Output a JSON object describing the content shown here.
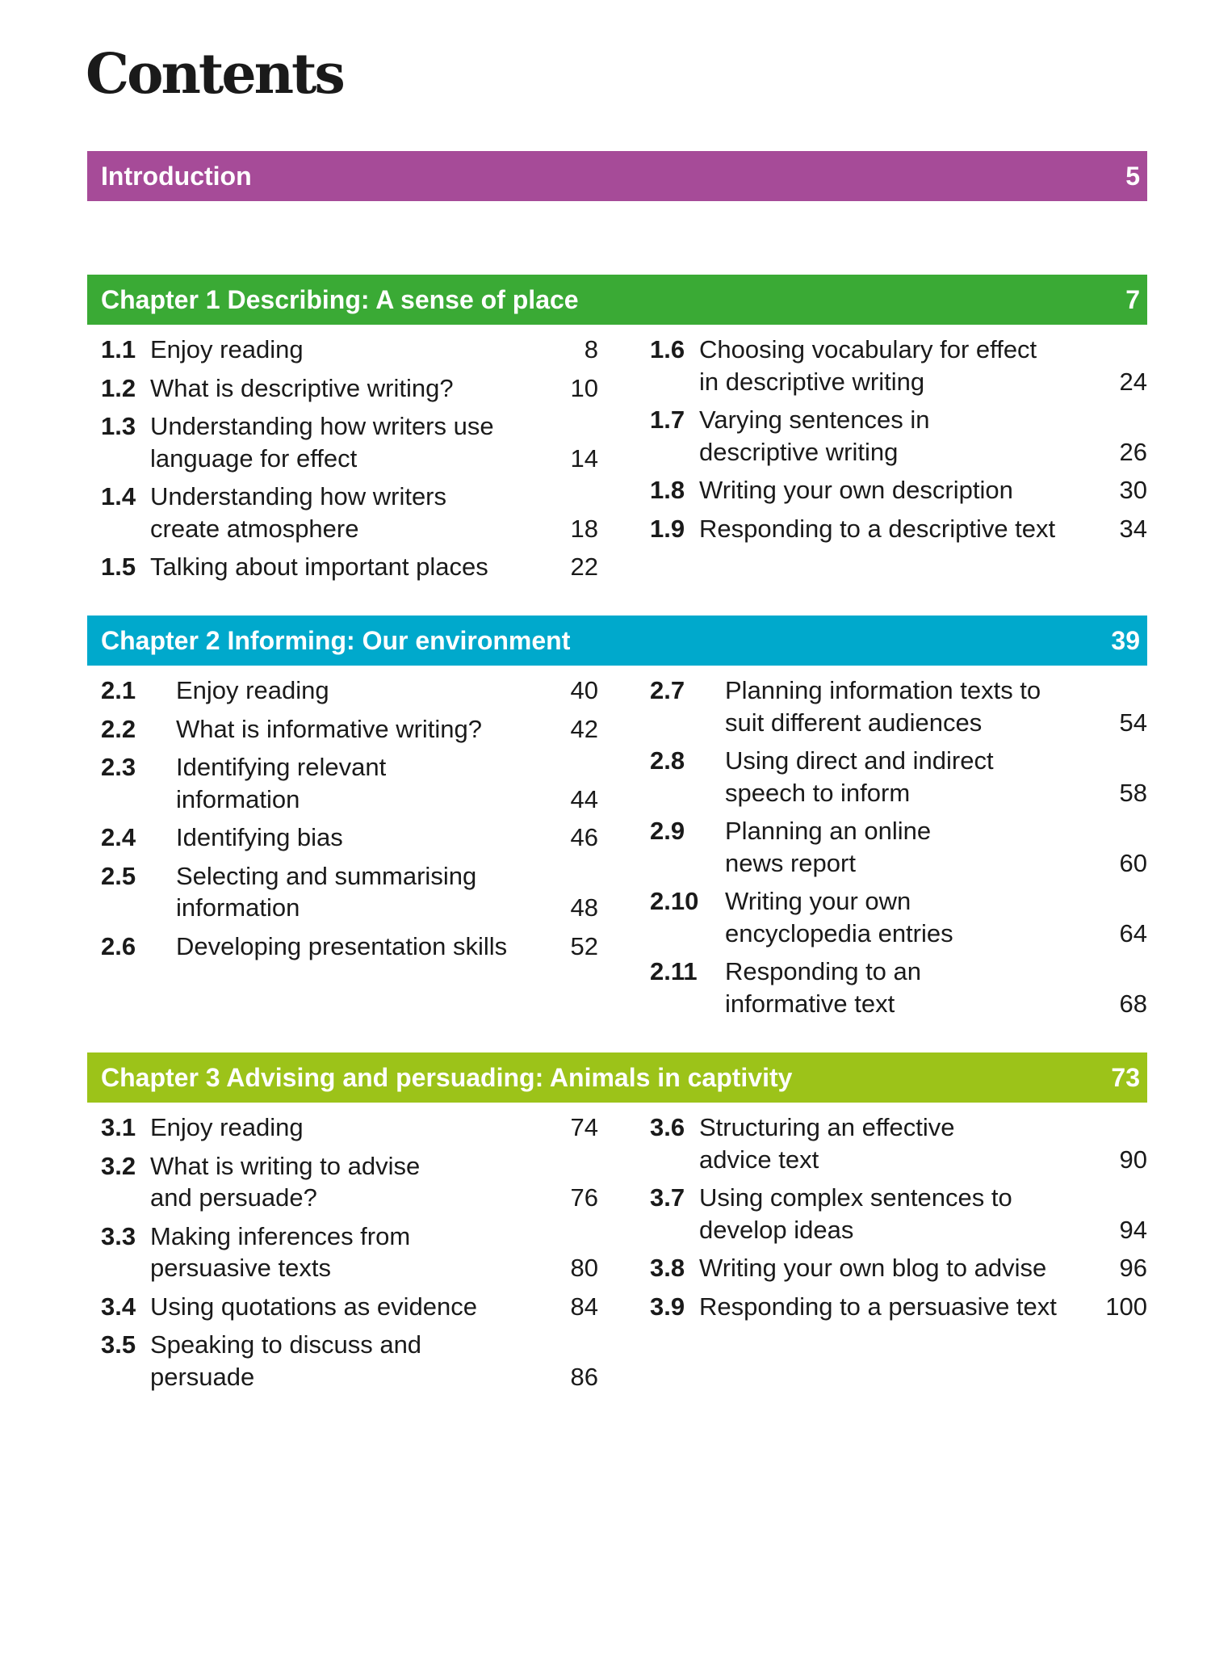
{
  "title": "Contents",
  "introduction": {
    "title": "Introduction",
    "page": 5
  },
  "chapters": [
    {
      "title": "Chapter 1 Describing: A sense of place",
      "page": 7,
      "columns": [
        [
          {
            "number": "1.1",
            "lines": [
              "Enjoy reading"
            ],
            "page": 8
          },
          {
            "number": "1.2",
            "lines": [
              "What is descriptive writing?"
            ],
            "page": 10
          },
          {
            "number": "1.3",
            "lines": [
              "Understanding how writers use",
              "language for effect"
            ],
            "page": 14
          },
          {
            "number": "1.4",
            "lines": [
              "Understanding how writers",
              "create atmosphere"
            ],
            "page": 18
          },
          {
            "number": "1.5",
            "lines": [
              "Talking about important places"
            ],
            "page": 22
          }
        ],
        [
          {
            "number": "1.6",
            "lines": [
              "Choosing vocabulary for effect",
              "in descriptive writing"
            ],
            "page": 24
          },
          {
            "number": "1.7",
            "lines": [
              "Varying sentences in",
              "descriptive writing"
            ],
            "page": 26
          },
          {
            "number": "1.8",
            "lines": [
              "Writing your own description"
            ],
            "page": 30
          },
          {
            "number": "1.9",
            "lines": [
              "Responding to a descriptive text"
            ],
            "page": 34
          }
        ]
      ]
    },
    {
      "title": "Chapter 2 Informing: Our environment",
      "page": 39,
      "columns": [
        [
          {
            "number": "2.1",
            "lines": [
              "Enjoy reading"
            ],
            "page": 40
          },
          {
            "number": "2.2",
            "lines": [
              "What is informative writing?"
            ],
            "page": 42
          },
          {
            "number": "2.3",
            "lines": [
              "Identifying relevant",
              "information"
            ],
            "page": 44
          },
          {
            "number": "2.4",
            "lines": [
              "Identifying bias"
            ],
            "page": 46
          },
          {
            "number": "2.5",
            "lines": [
              "Selecting and summarising",
              "information"
            ],
            "page": 48
          },
          {
            "number": "2.6",
            "lines": [
              "Developing presentation skills"
            ],
            "page": 52
          }
        ],
        [
          {
            "number": "2.7",
            "lines": [
              "Planning information texts to",
              "suit different audiences"
            ],
            "page": 54
          },
          {
            "number": "2.8",
            "lines": [
              "Using direct and indirect",
              "speech to inform"
            ],
            "page": 58
          },
          {
            "number": "2.9",
            "lines": [
              "Planning an online",
              "news report"
            ],
            "page": 60
          },
          {
            "number": "2.10",
            "lines": [
              "Writing your own",
              "encyclopedia entries"
            ],
            "page": 64
          },
          {
            "number": "2.11",
            "lines": [
              "Responding to an",
              "informative text"
            ],
            "page": 68
          }
        ]
      ]
    },
    {
      "title": "Chapter 3 Advising and persuading: Animals in captivity",
      "page": 73,
      "columns": [
        [
          {
            "number": "3.1",
            "lines": [
              "Enjoy reading"
            ],
            "page": 74
          },
          {
            "number": "3.2",
            "lines": [
              "What is writing to advise",
              "and persuade?"
            ],
            "page": 76
          },
          {
            "number": "3.3",
            "lines": [
              "Making inferences from",
              "persuasive texts"
            ],
            "page": 80
          },
          {
            "number": "3.4",
            "lines": [
              "Using quotations as evidence"
            ],
            "page": 84
          },
          {
            "number": "3.5",
            "lines": [
              "Speaking to discuss and",
              "persuade"
            ],
            "page": 86
          }
        ],
        [
          {
            "number": "3.6",
            "lines": [
              "Structuring an effective",
              "advice text"
            ],
            "page": 90
          },
          {
            "number": "3.7",
            "lines": [
              "Using complex sentences to",
              "develop ideas"
            ],
            "page": 94
          },
          {
            "number": "3.8",
            "lines": [
              "Writing your own blog to advise"
            ],
            "page": 96
          },
          {
            "number": "3.9",
            "lines": [
              "Responding to a persuasive text"
            ],
            "page": 100
          }
        ]
      ]
    }
  ]
}
